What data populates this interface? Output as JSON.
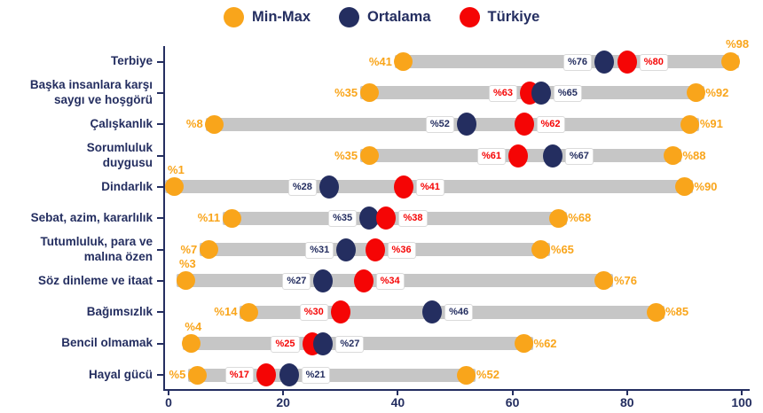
{
  "chart_data": {
    "type": "dumbbell",
    "title": "",
    "value_prefix": "%",
    "legend": [
      {
        "id": "minmax",
        "label": "Min-Max",
        "color": "#F9A51B"
      },
      {
        "id": "ortalama",
        "label": "Ortalama",
        "color": "#242E60"
      },
      {
        "id": "turkiye",
        "label": "Türkiye",
        "color": "#F50505"
      }
    ],
    "x_axis": {
      "min": 0,
      "max": 100,
      "ticks": [
        0,
        20,
        40,
        60,
        80,
        100
      ]
    },
    "colors": {
      "axis": "#242E60",
      "minmax": "#F9A51B",
      "ortalama": "#242E60",
      "turkiye": "#F50505",
      "bar": "#C6C6C6",
      "label_box_border": "#DBDBDB"
    },
    "rows": [
      {
        "category": "Terbiye",
        "min": 41,
        "max": 98,
        "ortalama": 76,
        "turkiye": 80,
        "min_label_pos": "left",
        "max_label_pos": "above"
      },
      {
        "category": "Başka insanlara karşı\nsaygı ve hoşgörü",
        "min": 35,
        "max": 92,
        "ortalama": 65,
        "turkiye": 63,
        "min_label_pos": "left",
        "max_label_pos": "right"
      },
      {
        "category": "Çalışkanlık",
        "min": 8,
        "max": 91,
        "ortalama": 52,
        "turkiye": 62,
        "min_label_pos": "left",
        "max_label_pos": "right"
      },
      {
        "category": "Sorumluluk\nduygusu",
        "min": 35,
        "max": 88,
        "ortalama": 67,
        "turkiye": 61,
        "min_label_pos": "left",
        "max_label_pos": "right"
      },
      {
        "category": "Dindarlık",
        "min": 1,
        "max": 90,
        "ortalama": 28,
        "turkiye": 41,
        "min_label_pos": "above",
        "max_label_pos": "right"
      },
      {
        "category": "Sebat, azim, kararlılık",
        "min": 11,
        "max": 68,
        "ortalama": 35,
        "turkiye": 38,
        "min_label_pos": "left",
        "max_label_pos": "right"
      },
      {
        "category": "Tutumluluk, para ve\nmalına özen",
        "min": 7,
        "max": 65,
        "ortalama": 31,
        "turkiye": 36,
        "min_label_pos": "left",
        "max_label_pos": "right"
      },
      {
        "category": "Söz dinleme ve itaat",
        "min": 3,
        "max": 76,
        "ortalama": 27,
        "turkiye": 34,
        "min_label_pos": "above",
        "max_label_pos": "right"
      },
      {
        "category": "Bağımsızlık",
        "min": 14,
        "max": 85,
        "ortalama": 46,
        "turkiye": 30,
        "min_label_pos": "left",
        "max_label_pos": "right"
      },
      {
        "category": "Bencil olmamak",
        "min": 4,
        "max": 62,
        "ortalama": 27,
        "turkiye": 25,
        "min_label_pos": "above",
        "max_label_pos": "right"
      },
      {
        "category": "Hayal gücü",
        "min": 5,
        "max": 52,
        "ortalama": 21,
        "turkiye": 17,
        "min_label_pos": "left",
        "max_label_pos": "right"
      }
    ]
  }
}
